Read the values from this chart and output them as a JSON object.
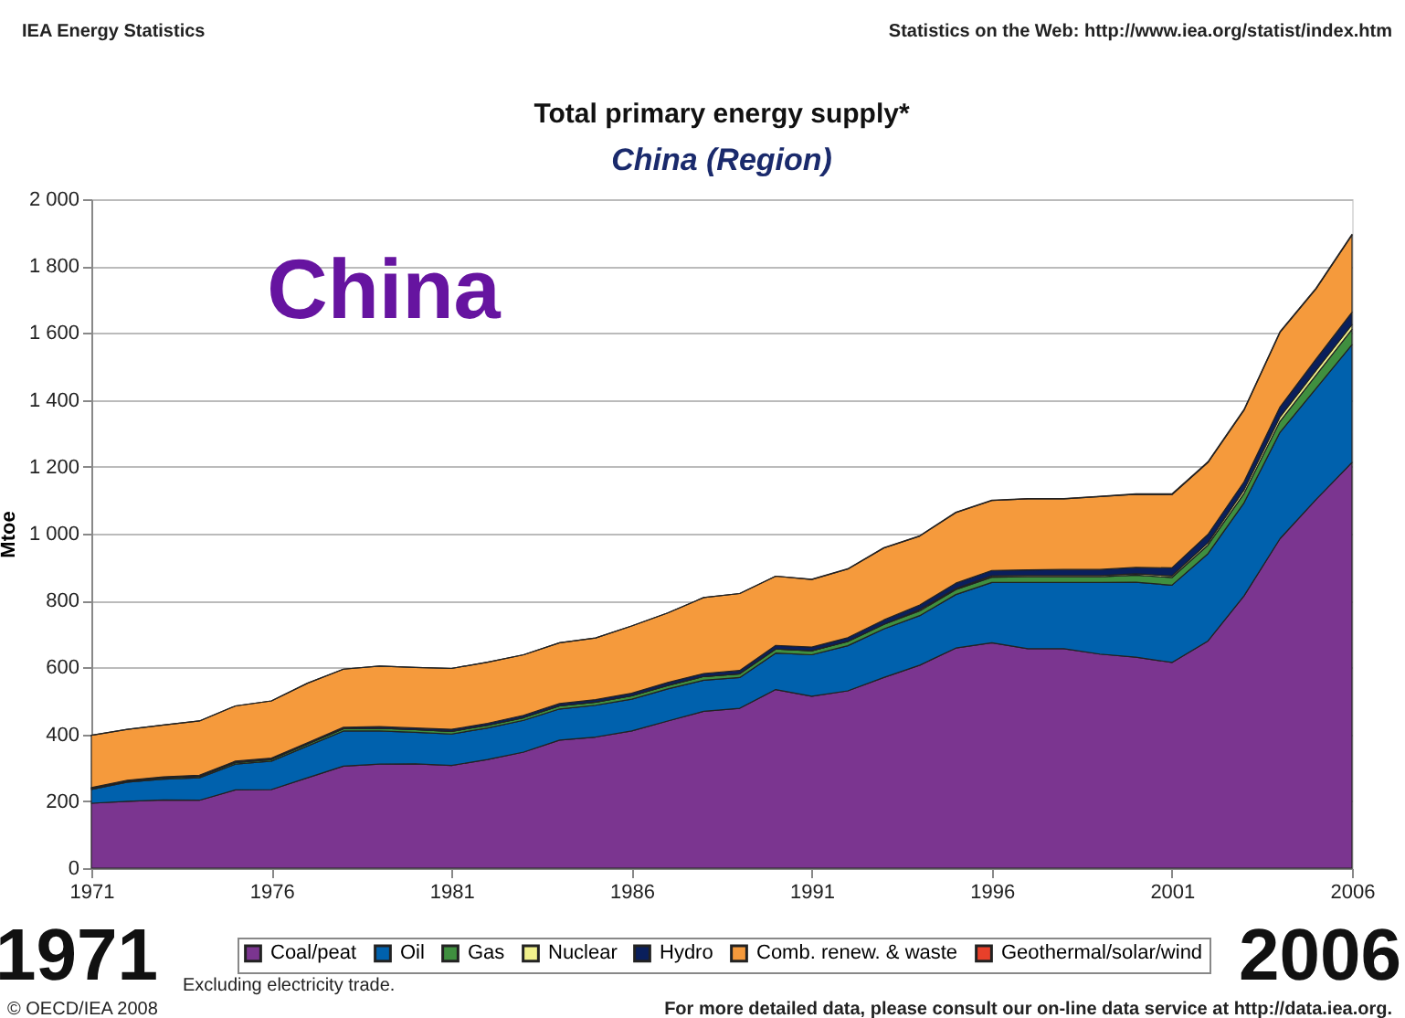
{
  "chart_data": {
    "type": "area",
    "stacked": true,
    "title": "Total primary energy supply*",
    "subtitle": "China (Region)",
    "ylabel": "Mtoe",
    "x": [
      1971,
      1972,
      1973,
      1974,
      1975,
      1976,
      1977,
      1978,
      1979,
      1980,
      1981,
      1982,
      1983,
      1984,
      1985,
      1986,
      1987,
      1988,
      1989,
      1990,
      1991,
      1992,
      1993,
      1994,
      1995,
      1996,
      1997,
      1998,
      1999,
      2000,
      2001,
      2002,
      2003,
      2004,
      2005,
      2006
    ],
    "series": [
      {
        "name": "Coal/peat",
        "color": "#7b3590",
        "values": [
          194,
          200,
          204,
          203,
          234,
          235,
          270,
          305,
          311,
          312,
          307,
          325,
          347,
          383,
          392,
          410,
          440,
          469,
          478,
          534,
          514,
          530,
          570,
          607,
          658,
          674,
          656,
          656,
          640,
          631,
          615,
          679,
          814,
          985,
          1102,
          1213
        ]
      },
      {
        "name": "Oil",
        "color": "#0061ad",
        "values": [
          41,
          57,
          62,
          67,
          77,
          85,
          95,
          105,
          99,
          94,
          94,
          94,
          95,
          93,
          95,
          95,
          96,
          93,
          92,
          109,
          124,
          135,
          145,
          148,
          160,
          180,
          198,
          198,
          214,
          224,
          231,
          261,
          278,
          318,
          332,
          352
        ]
      },
      {
        "name": "Gas",
        "color": "#3f8f3f",
        "values": [
          3,
          3,
          4,
          4,
          5,
          5,
          6,
          7,
          8,
          8,
          8,
          8,
          8,
          9,
          9,
          10,
          10,
          11,
          11,
          12,
          12,
          13,
          14,
          14,
          15,
          16,
          17,
          17,
          17,
          21,
          23,
          26,
          28,
          33,
          40,
          46
        ]
      },
      {
        "name": "Nuclear",
        "color": "#f0f08c",
        "values": [
          0,
          0,
          0,
          0,
          0,
          0,
          0,
          0,
          0,
          0,
          0,
          0,
          0,
          0,
          0,
          0,
          0,
          0,
          0,
          0,
          0,
          0,
          0,
          4,
          3,
          4,
          4,
          4,
          4,
          4,
          5,
          7,
          11,
          13,
          14,
          14
        ]
      },
      {
        "name": "Hydro",
        "color": "#0a1f5c",
        "values": [
          3,
          3,
          3,
          4,
          4,
          4,
          4,
          4,
          5,
          5,
          6,
          6,
          7,
          7,
          8,
          8,
          9,
          9,
          10,
          11,
          11,
          11,
          13,
          14,
          16,
          16,
          17,
          18,
          18,
          19,
          24,
          25,
          24,
          30,
          34,
          37
        ]
      },
      {
        "name": "Comb. renew. & waste",
        "color": "#f59a3c",
        "values": [
          156,
          152,
          155,
          162,
          165,
          171,
          178,
          174,
          181,
          181,
          182,
          183,
          181,
          182,
          184,
          201,
          208,
          227,
          230,
          207,
          202,
          205,
          215,
          206,
          211,
          209,
          212,
          211,
          218,
          219,
          219,
          215,
          214,
          223,
          210,
          231
        ]
      },
      {
        "name": "Geothermal/solar/wind",
        "color": "#e8402a",
        "values": [
          0,
          0,
          0,
          0,
          0,
          0,
          0,
          0,
          0,
          0,
          0,
          0,
          0,
          0,
          0,
          0,
          0,
          0,
          0,
          0,
          1,
          1,
          1,
          1,
          1,
          1,
          1,
          1,
          1,
          1,
          2,
          2,
          2,
          2,
          2,
          2
        ]
      }
    ],
    "xlim": [
      1971,
      2006
    ],
    "xticks": [
      1971,
      1976,
      1981,
      1986,
      1991,
      1996,
      2001,
      2006
    ],
    "ylim": [
      0,
      2000
    ],
    "yticks": [
      0,
      200,
      400,
      600,
      800,
      {
        "value": 1000,
        "label": "1 000"
      },
      {
        "value": 1200,
        "label": "1 200"
      },
      {
        "value": 1400,
        "label": "1 400"
      },
      {
        "value": 1600,
        "label": "1 600"
      },
      {
        "value": 1800,
        "label": "1 800"
      },
      {
        "value": 2000,
        "label": "2 000"
      }
    ],
    "grid": "y",
    "legend": "bottom",
    "annotations": [
      "IEA Energy Statistics",
      "Statistics on the Web: http://www.iea.org/statist/index.htm",
      "China",
      "1971",
      "2006",
      "Excluding electricity trade.",
      "© OECD/IEA 2008",
      "For more detailed data, please consult our on-line data service at http://data.iea.org."
    ]
  }
}
